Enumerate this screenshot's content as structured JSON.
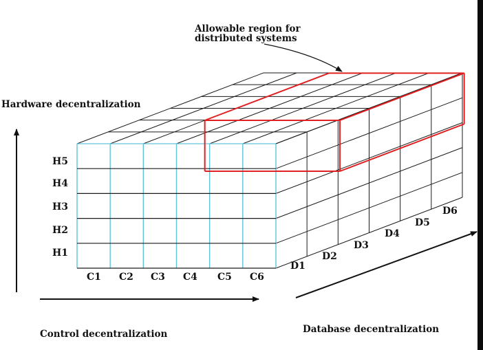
{
  "annotation": {
    "line1": "Allowable region for",
    "line2": "distributed systems"
  },
  "axes": {
    "hardware": {
      "title": "Hardware decentralization",
      "ticks": [
        "H1",
        "H2",
        "H3",
        "H4",
        "H5"
      ]
    },
    "control": {
      "title": "Control decentralization",
      "ticks": [
        "C1",
        "C2",
        "C3",
        "C4",
        "C5",
        "C6"
      ]
    },
    "database": {
      "title": "Database decentralization",
      "ticks": [
        "D1",
        "D2",
        "D3",
        "D4",
        "D5",
        "D6"
      ]
    }
  },
  "colors": {
    "front_face": "#5fc3dc",
    "grid": "#1a1a1a",
    "region": "#e02020",
    "arrow": "#111111"
  }
}
